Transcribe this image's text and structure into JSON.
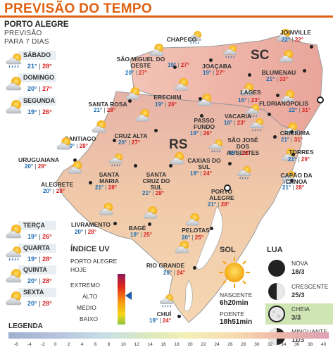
{
  "header": {
    "title": "PREVISÃO DO TEMPO"
  },
  "panel": {
    "city": "PORTO ALEGRE",
    "line1": "PREVISÃO",
    "line2": "PARA 7 DIAS"
  },
  "days": [
    {
      "name": "SÁBADO",
      "min": "21°",
      "max": "28°",
      "icon": "rain-sun-icon"
    },
    {
      "name": "DOMINGO",
      "min": "20°",
      "max": "27°",
      "icon": "sun-cloud-icon"
    },
    {
      "name": "SEGUNDA",
      "min": "19°",
      "max": "26°",
      "icon": "sun-cloud-icon"
    },
    {
      "name": "TERÇA",
      "min": "19°",
      "max": "26°",
      "icon": "sun-cloud-icon"
    },
    {
      "name": "QUARTA",
      "min": "19°",
      "max": "28°",
      "icon": "rain-sun-icon"
    },
    {
      "name": "QUINTA",
      "min": "20°",
      "max": "28°",
      "icon": "sun-cloud-icon"
    },
    {
      "name": "SEXTA",
      "min": "20°",
      "max": "28°",
      "icon": "sun-cloud-icon"
    }
  ],
  "states": {
    "sc": "SC",
    "rs": "RS"
  },
  "cities": [
    {
      "name": "JOINVILLE",
      "min": "22°",
      "max": "32°"
    },
    {
      "name": "SÃO MIGUEL DO OESTE",
      "min": "20°",
      "max": "27°"
    },
    {
      "name": "CHAPECÓ",
      "min": "19°",
      "max": "27°"
    },
    {
      "name": "JOAÇABA",
      "min": "19°",
      "max": "27°"
    },
    {
      "name": "BLUMENAU",
      "min": "21°",
      "max": "33°"
    },
    {
      "name": "LAGES",
      "min": "16°",
      "max": "23°"
    },
    {
      "name": "ERECHIM",
      "min": "19°",
      "max": "26°"
    },
    {
      "name": "FLORIANÓPOLIS",
      "min": "22°",
      "max": "31°"
    },
    {
      "name": "SANTA ROSA",
      "min": "21°",
      "max": "28°"
    },
    {
      "name": "PASSO FUNDO",
      "min": "19°",
      "max": "26°"
    },
    {
      "name": "VACARIA",
      "min": "16°",
      "max": "23°"
    },
    {
      "name": "CRUZ ALTA",
      "min": "20°",
      "max": "27°"
    },
    {
      "name": "SANTIAGO",
      "min": "20°",
      "max": "28°"
    },
    {
      "name": "SÃO JOSÉ DOS AUSENTES",
      "min": "15°",
      "max": "22°"
    },
    {
      "name": "CRICIÚMA",
      "min": "21°",
      "max": "31°"
    },
    {
      "name": "URUGUAIANA",
      "min": "20°",
      "max": "29°"
    },
    {
      "name": "CAXIAS DO SUL",
      "min": "19°",
      "max": "24°"
    },
    {
      "name": "TORRES",
      "min": "21°",
      "max": "29°"
    },
    {
      "name": "SANTA MARIA",
      "min": "21°",
      "max": "28°"
    },
    {
      "name": "SANTA CRUZ DO SUL",
      "min": "21°",
      "max": "28°"
    },
    {
      "name": "ALEGRETE",
      "min": "20°",
      "max": "28°"
    },
    {
      "name": "CAPÃO DA CANOA",
      "min": "21°",
      "max": "28°"
    },
    {
      "name": "PORTO ALEGRE",
      "min": "21°",
      "max": "28°"
    },
    {
      "name": "LIVRAMENTO",
      "min": "20°",
      "max": "28°"
    },
    {
      "name": "BAGÉ",
      "min": "19°",
      "max": "25°"
    },
    {
      "name": "PELOTAS",
      "min": "20°",
      "max": "25°"
    },
    {
      "name": "RIO GRANDE",
      "min": "20°",
      "max": "24°"
    },
    {
      "name": "CHUÍ",
      "min": "19°",
      "max": "24°"
    }
  ],
  "uv": {
    "title": "ÍNDICE UV",
    "sub1": "PORTO ALEGRE",
    "sub2": "HOJE",
    "levels": [
      "EXTREMO",
      "ALTO",
      "MÉDIO",
      "BAIXO"
    ],
    "current": "ALTO"
  },
  "sun": {
    "title": "SOL",
    "rise_label": "NASCENTE",
    "rise": "6h20min",
    "set_label": "POENTE",
    "set": "18h51min"
  },
  "moon": {
    "title": "LUA",
    "phases": [
      {
        "name": "NOVA",
        "date": "18/3"
      },
      {
        "name": "CRESCENTE",
        "date": "25/3"
      },
      {
        "name": "CHEIA",
        "date": "3/3"
      },
      {
        "name": "MINGUANTE",
        "date": "11/3"
      }
    ],
    "current": "CHEIA"
  },
  "legend": {
    "title": "LEGENDA",
    "values": [
      "-6",
      "-4",
      "-2",
      "0",
      "2",
      "4",
      "6",
      "8",
      "10",
      "12",
      "14",
      "16",
      "18",
      "20",
      "22",
      "24",
      "26",
      "28",
      "30",
      "32",
      "34",
      "36",
      "38",
      "40"
    ]
  },
  "colors": {
    "accent": "#e06010",
    "min": "#1d6cb3",
    "max": "#d62020",
    "moon_highlight": "#cfe5b4"
  }
}
